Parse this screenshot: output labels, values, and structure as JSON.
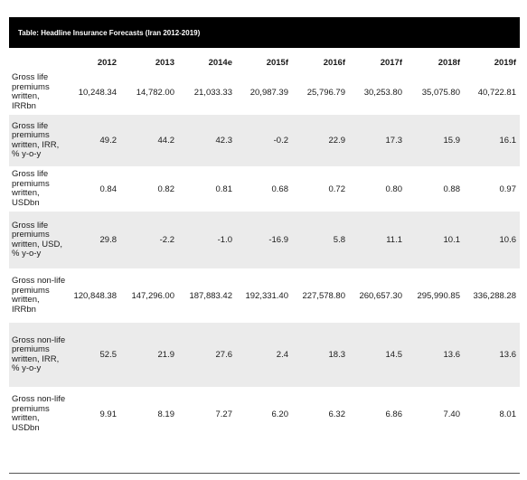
{
  "title": "Table: Headline Insurance Forecasts (Iran 2012-2019)",
  "columns": [
    "2012",
    "2013",
    "2014e",
    "2015f",
    "2016f",
    "2017f",
    "2018f",
    "2019f"
  ],
  "rows": [
    {
      "label": "Gross life premiums written, IRRbn",
      "values": [
        "10,248.34",
        "14,782.00",
        "21,033.33",
        "20,987.39",
        "25,796.79",
        "30,253.80",
        "35,075.80",
        "40,722.81"
      ]
    },
    {
      "label": "Gross life premiums written, IRR, % y-o-y",
      "values": [
        "49.2",
        "44.2",
        "42.3",
        "-0.2",
        "22.9",
        "17.3",
        "15.9",
        "16.1"
      ]
    },
    {
      "label": "Gross life premiums written, USDbn",
      "values": [
        "0.84",
        "0.82",
        "0.81",
        "0.68",
        "0.72",
        "0.80",
        "0.88",
        "0.97"
      ]
    },
    {
      "label": "Gross life premiums written, USD, % y-o-y",
      "values": [
        "29.8",
        "-2.2",
        "-1.0",
        "-16.9",
        "5.8",
        "11.1",
        "10.1",
        "10.6"
      ]
    },
    {
      "label": "Gross non-life premiums written, IRRbn",
      "values": [
        "120,848.38",
        "147,296.00",
        "187,883.42",
        "192,331.40",
        "227,578.80",
        "260,657.30",
        "295,990.85",
        "336,288.28"
      ]
    },
    {
      "label": "Gross non-life premiums written, IRR, % y-o-y",
      "values": [
        "52.5",
        "21.9",
        "27.6",
        "2.4",
        "18.3",
        "14.5",
        "13.6",
        "13.6"
      ]
    },
    {
      "label": "Gross non-life premiums written, USDbn",
      "values": [
        "9.91",
        "8.19",
        "7.27",
        "6.20",
        "6.32",
        "6.86",
        "7.40",
        "8.01"
      ]
    }
  ]
}
